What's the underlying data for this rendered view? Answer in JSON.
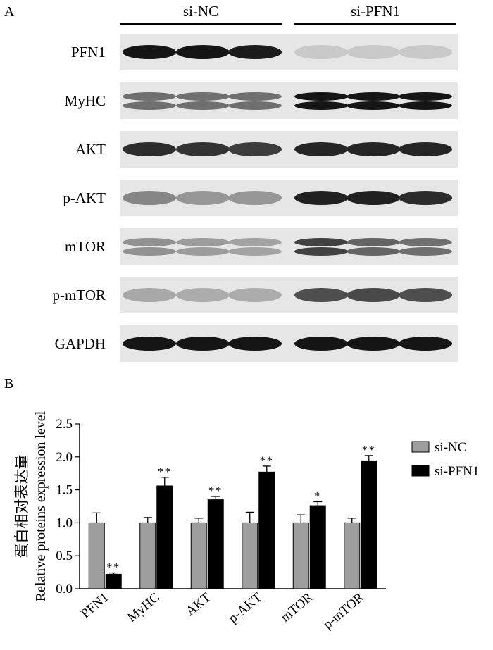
{
  "panel_a": {
    "letter": "A",
    "groups": [
      "si-NC",
      "si-PFN1"
    ],
    "blots": [
      {
        "label": "PFN1",
        "intensity": [
          0.95,
          0.95,
          0.92,
          0.15,
          0.15,
          0.15
        ],
        "double": false
      },
      {
        "label": "MyHC",
        "intensity": [
          0.55,
          0.55,
          0.55,
          0.95,
          0.95,
          0.95
        ],
        "double": true
      },
      {
        "label": "AKT",
        "intensity": [
          0.85,
          0.82,
          0.78,
          0.88,
          0.88,
          0.88
        ],
        "double": false
      },
      {
        "label": "p-AKT",
        "intensity": [
          0.45,
          0.38,
          0.38,
          0.9,
          0.9,
          0.85
        ],
        "double": false
      },
      {
        "label": "mTOR",
        "intensity": [
          0.4,
          0.35,
          0.32,
          0.75,
          0.6,
          0.55
        ],
        "double": true
      },
      {
        "label": "p-mTOR",
        "intensity": [
          0.3,
          0.28,
          0.28,
          0.7,
          0.72,
          0.7
        ],
        "double": false
      },
      {
        "label": "GAPDH",
        "intensity": [
          0.95,
          0.95,
          0.95,
          0.95,
          0.95,
          0.95
        ],
        "double": false
      }
    ]
  },
  "panel_b": {
    "letter": "B"
  },
  "chart_data": {
    "type": "bar",
    "categories": [
      "PFN1",
      "MyHC",
      "AKT",
      "p-AKT",
      "mTOR",
      "p-mTOR"
    ],
    "series": [
      {
        "name": "si-NC",
        "color": "#9e9e9e",
        "values": [
          1.0,
          1.0,
          1.0,
          1.0,
          1.0,
          1.0
        ],
        "errors": [
          0.15,
          0.08,
          0.07,
          0.16,
          0.12,
          0.07
        ]
      },
      {
        "name": "si-PFN1",
        "color": "#000000",
        "values": [
          0.22,
          1.56,
          1.35,
          1.77,
          1.26,
          1.94
        ],
        "errors": [
          0.02,
          0.13,
          0.05,
          0.09,
          0.06,
          0.08
        ]
      }
    ],
    "significance": [
      "**",
      "**",
      "**",
      "**",
      "*",
      "**"
    ],
    "ylabel_cn": "蛋白相对表达量",
    "ylabel": "Relative proteins expression level",
    "ylim": [
      0,
      2.5
    ],
    "yticks": [
      "0.0",
      "0.5",
      "1.0",
      "1.5",
      "2.0",
      "2.5"
    ],
    "legend_position": "top-right",
    "grid": false
  }
}
